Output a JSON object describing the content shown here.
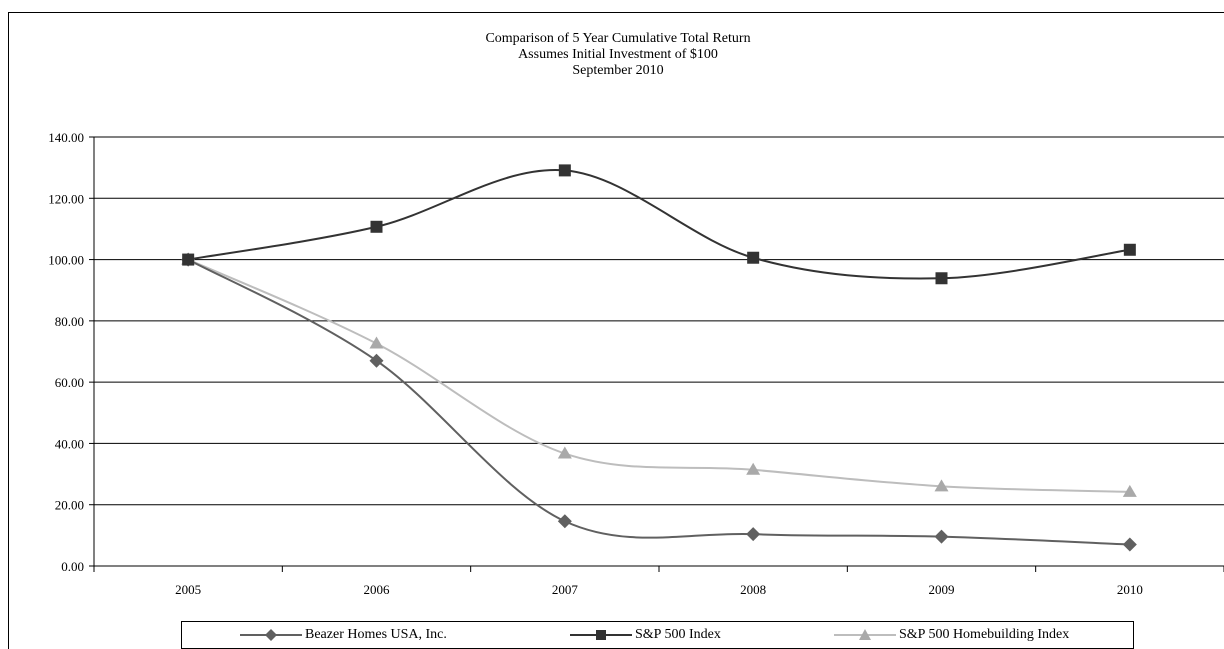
{
  "chart_data": {
    "type": "line",
    "title": "Comparison of 5 Year Cumulative Total Return",
    "subtitle": "Assumes Initial Investment of $100",
    "subtitle2": "September 2010",
    "xlabel": "",
    "ylabel": "",
    "categories": [
      "2005",
      "2006",
      "2007",
      "2008",
      "2009",
      "2010"
    ],
    "ylim": [
      0,
      140
    ],
    "yticks": [
      "0.00",
      "20.00",
      "40.00",
      "60.00",
      "80.00",
      "100.00",
      "120.00",
      "140.00"
    ],
    "grid": true,
    "smooth": true,
    "legend_position": "bottom",
    "series": [
      {
        "name": "Beazer Homes USA, Inc.",
        "values": [
          100.0,
          67.0,
          14.6,
          10.4,
          9.6,
          7.0
        ],
        "color": "#606060",
        "marker": "diamond"
      },
      {
        "name": "S&P 500 Index",
        "values": [
          100.0,
          110.7,
          129.1,
          100.6,
          93.9,
          103.2
        ],
        "color": "#333333",
        "marker": "square"
      },
      {
        "name": "S&P 500 Homebuilding Index",
        "values": [
          100.0,
          72.6,
          36.7,
          31.4,
          26.0,
          24.2
        ],
        "color": "#bdbdbd",
        "marker": "triangle"
      }
    ]
  }
}
